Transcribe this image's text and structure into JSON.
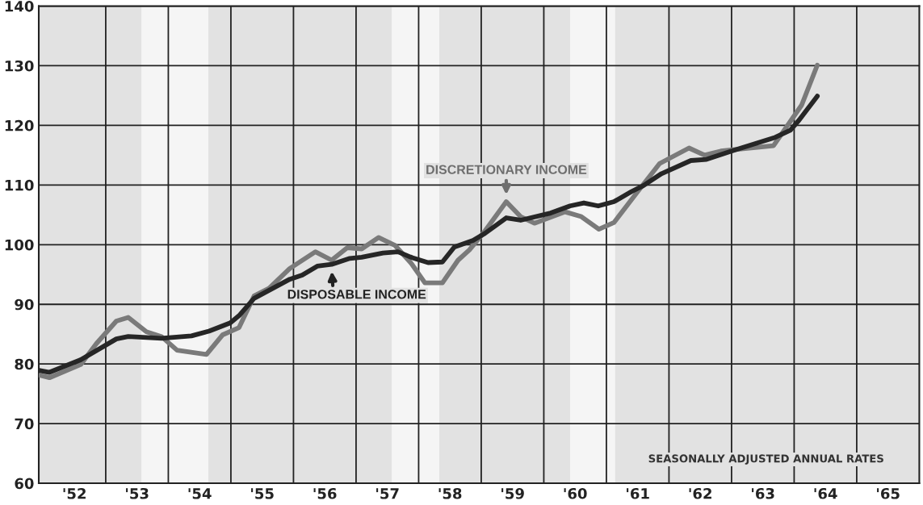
{
  "chart_data": {
    "type": "line",
    "series": [
      {
        "color": "#7a7a7a",
        "x": [
          1951.45,
          1951.6,
          1952.1,
          1952.35,
          1952.67,
          1952.86,
          1953.15,
          1953.39,
          1953.64,
          1954.11,
          1954.37,
          1954.63,
          1954.87,
          1955.11,
          1955.44,
          1955.85,
          1956.11,
          1956.36,
          1956.59,
          1956.86,
          1957.12,
          1957.38,
          1957.6,
          1957.88,
          1958.13,
          1958.31,
          1958.56,
          1958.9,
          1959.13,
          1959.35,
          1959.84,
          1960.1,
          1960.38,
          1960.62,
          1961.0,
          1961.35,
          1961.82,
          1962.07,
          1962.33,
          1963.17,
          1963.62,
          1963.87
        ],
        "values": [
          78.1,
          77.7,
          79.9,
          83.4,
          87.2,
          87.8,
          85.4,
          84.6,
          82.3,
          81.6,
          84.9,
          86.1,
          91.4,
          92.7,
          96.0,
          98.8,
          97.4,
          99.5,
          99.3,
          101.2,
          99.9,
          96.9,
          93.6,
          93.6,
          97.4,
          99.1,
          102.3,
          107.2,
          104.7,
          103.6,
          105.5,
          104.7,
          102.6,
          103.7,
          108.9,
          113.6,
          116.2,
          115.0,
          115.7,
          116.6,
          123.4,
          130.1
        ]
      },
      {
        "color": "#262626",
        "x": [
          1951.45,
          1951.6,
          1952.1,
          1952.67,
          1952.86,
          1953.39,
          1953.87,
          1954.15,
          1954.49,
          1954.63,
          1954.87,
          1955.44,
          1955.64,
          1955.88,
          1956.11,
          1956.4,
          1956.59,
          1956.93,
          1957.17,
          1957.4,
          1957.65,
          1957.88,
          1958.07,
          1958.37,
          1958.56,
          1958.9,
          1959.13,
          1959.61,
          1959.92,
          1960.14,
          1960.37,
          1960.62,
          1960.9,
          1961.09,
          1961.38,
          1961.85,
          1962.1,
          1962.53,
          1963.2,
          1963.44,
          1963.58,
          1963.87
        ],
        "values": [
          78.9,
          78.6,
          80.7,
          84.2,
          84.6,
          84.3,
          84.7,
          85.5,
          86.9,
          88.1,
          91.0,
          94.2,
          94.9,
          96.4,
          96.7,
          97.7,
          97.9,
          98.6,
          98.8,
          97.8,
          97.0,
          97.1,
          99.6,
          100.7,
          101.9,
          104.5,
          104.1,
          105.3,
          106.5,
          107.0,
          106.5,
          107.2,
          108.9,
          109.9,
          111.9,
          114.1,
          114.3,
          115.8,
          118.0,
          119.2,
          120.9,
          124.9
        ]
      }
    ],
    "xlim": [
      1951.43,
      1965.5
    ],
    "xticks": [
      {
        "value": 1952,
        "label": "'52"
      },
      {
        "value": 1953,
        "label": "'53"
      },
      {
        "value": 1954,
        "label": "'54"
      },
      {
        "value": 1955,
        "label": "'55"
      },
      {
        "value": 1956,
        "label": "'56"
      },
      {
        "value": 1957,
        "label": "'57"
      },
      {
        "value": 1958,
        "label": "'58"
      },
      {
        "value": 1959,
        "label": "'59"
      },
      {
        "value": 1960,
        "label": "'60"
      },
      {
        "value": 1961,
        "label": "'61"
      },
      {
        "value": 1962,
        "label": "'62"
      },
      {
        "value": 1963,
        "label": "'63"
      },
      {
        "value": 1964,
        "label": "'64"
      },
      {
        "value": 1965,
        "label": "'65"
      },
      {
        "value": 1952.5,
        "label": null
      },
      {
        "value": 1953.5,
        "label": null
      },
      {
        "value": 1954.5,
        "label": null
      },
      {
        "value": 1955.5,
        "label": null
      },
      {
        "value": 1956.5,
        "label": null
      },
      {
        "value": 1957.5,
        "label": null
      },
      {
        "value": 1958.5,
        "label": null
      },
      {
        "value": 1959.5,
        "label": null
      },
      {
        "value": 1960.5,
        "label": null
      },
      {
        "value": 1961.5,
        "label": null
      },
      {
        "value": 1962.5,
        "label": null
      },
      {
        "value": 1963.5,
        "label": null
      },
      {
        "value": 1964.5,
        "label": null
      }
    ],
    "ylim": [
      60,
      140
    ],
    "yticks": [
      60,
      70,
      80,
      90,
      100,
      110,
      120,
      130,
      140
    ],
    "grid": true,
    "bands": [
      {
        "axis": "x",
        "from": 1953.07,
        "to": 1954.14,
        "color": "#f5f5f5"
      },
      {
        "axis": "x",
        "from": 1957.07,
        "to": 1957.83,
        "color": "#f5f5f5"
      },
      {
        "axis": "x",
        "from": 1959.92,
        "to": 1960.64,
        "color": "#f5f5f5"
      }
    ],
    "annotations": [
      {
        "text": "DISPOSABLE INCOME",
        "x": 1956.11,
        "y": 96.7
      },
      {
        "text": "DISCRETIONARY INCOME",
        "x": 1958.9,
        "y": 107.2
      },
      "SEASONALLY ADJUSTED ANNUAL RATES"
    ]
  }
}
